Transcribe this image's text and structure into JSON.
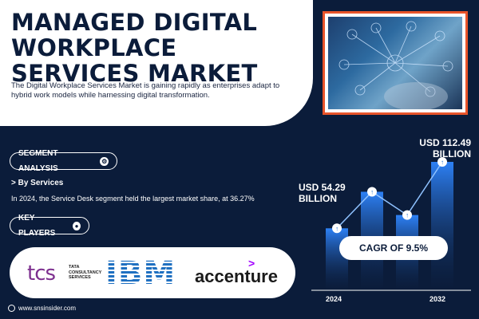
{
  "header": {
    "title": "MANAGED DIGITAL WORKPLACE SERVICES MARKET",
    "subtitle": "The Digital Workplace Services Market is gaining rapidly as enterprises adapt to hybrid work models while harnessing digital transformation."
  },
  "segment": {
    "label": "SEGMENT ANALYSIS",
    "heading": "> By Services",
    "text": "In 2024, the Service Desk segment held the largest market share, at 36.27%"
  },
  "key_players": {
    "label": "KEY PLAYERS",
    "tcs": "tcs",
    "tcs_sub": "TATA CONSULTANCY SERVICES",
    "ibm": "IBM",
    "accenture": "accenture",
    "accenture_mark": ">"
  },
  "footer": {
    "site": "www.snsinsider.com"
  },
  "chart": {
    "cagr": "CAGR OF 9.5%",
    "label_2024_line1": "USD 54.29",
    "label_2024_line2": "BILLION",
    "label_2032_line1": "USD 112.49",
    "label_2032_line2": "BILLION"
  },
  "chart_data": {
    "type": "bar",
    "categories": [
      "2024",
      "2032"
    ],
    "values": [
      54.29,
      112.49
    ],
    "title": "",
    "xlabel": "",
    "ylabel": ""
  },
  "colors": {
    "background": "#0b1c3a",
    "accent": "#e8542a",
    "bar": "#1f6fd0"
  }
}
